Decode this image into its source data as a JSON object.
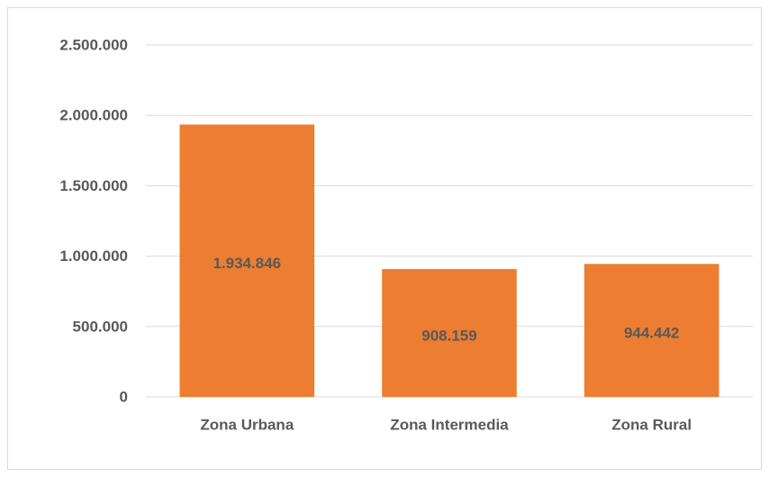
{
  "chart_data": {
    "type": "bar",
    "categories": [
      "Zona Urbana",
      "Zona Intermedia",
      "Zona Rural"
    ],
    "values": [
      1934846,
      908159,
      944442
    ],
    "value_labels": [
      "1.934.846",
      "908.159",
      "944.442"
    ],
    "color": "#ed7d31",
    "ylim": [
      0,
      2500000
    ],
    "yticks": [
      0,
      {
        "value": 500000,
        "label": "500.000"
      },
      {
        "value": 1000000,
        "label": "1.000.000"
      },
      {
        "value": 1500000,
        "label": "1.500.000"
      },
      {
        "value": 2000000,
        "label": "2.000.000"
      },
      {
        "value": 2500000,
        "label": "2.500.000"
      }
    ],
    "grid": true
  }
}
